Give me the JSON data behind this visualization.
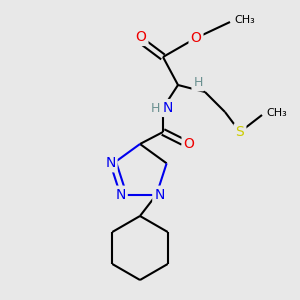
{
  "background_color": "#e8e8e8",
  "colors": {
    "C": "#000000",
    "N": "#0000ee",
    "O": "#ee0000",
    "S": "#cccc00",
    "H": "#6a9090"
  },
  "figure_size": [
    3.0,
    3.0
  ],
  "dpi": 100,
  "lw": 1.5,
  "fontsize": 9,
  "xlim": [
    0,
    300
  ],
  "ylim": [
    0,
    300
  ]
}
